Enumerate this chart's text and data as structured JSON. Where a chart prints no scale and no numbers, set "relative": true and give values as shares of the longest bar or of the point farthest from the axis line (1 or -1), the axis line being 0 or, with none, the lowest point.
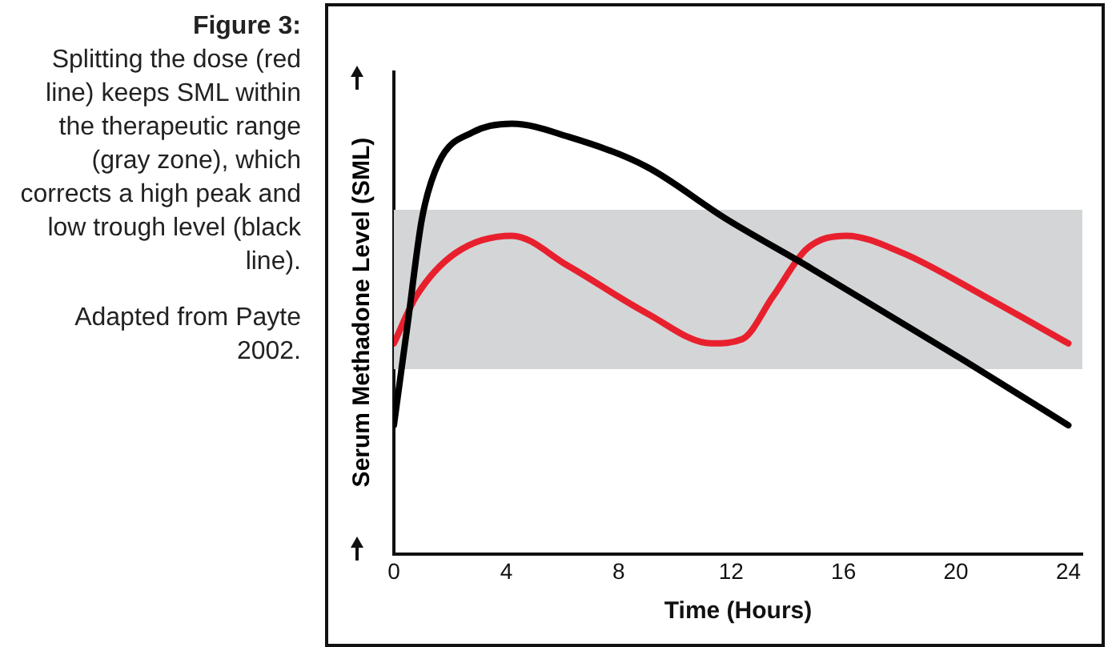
{
  "chart_data": {
    "type": "line",
    "title": "Figure 3:",
    "subtitle": "Splitting the dose (red line) keeps SML within the therapeutic range (gray zone), which corrects a high peak and low trough level (black line).",
    "annotations": [
      "Adapted from Payte 2002."
    ],
    "xlabel": "Time (Hours)",
    "ylabel": "Serum Methadone Level (SML)",
    "relative": true,
    "xlim": [
      0,
      24.5
    ],
    "xticks": [
      0,
      4,
      8,
      12,
      16,
      20,
      24
    ],
    "grid": false,
    "legend": false,
    "marker": "none",
    "line_style": "solid",
    "bands": [
      {
        "axis": "y",
        "from": 0.43,
        "to": 0.8,
        "color": "#d4d5d6"
      }
    ],
    "series": [
      {
        "color": "#000000",
        "x": [
          0,
          0.5,
          1,
          1.6,
          2.8,
          4.2,
          6.2,
          9,
          11.8,
          14.7,
          17.5,
          20.3,
          24
        ],
        "values": [
          0.3,
          0.54,
          0.78,
          0.91,
          0.98,
          1,
          0.97,
          0.9,
          0.78,
          0.67,
          0.56,
          0.45,
          0.3
        ]
      },
      {
        "color": "#e8202e",
        "x": [
          0,
          0.8,
          2.2,
          4.2,
          6.2,
          9,
          11.3,
          12.4,
          13.5,
          14.7,
          16.1,
          18.1,
          21,
          24
        ],
        "values": [
          0.49,
          0.6,
          0.7,
          0.74,
          0.67,
          0.56,
          0.49,
          0.5,
          0.6,
          0.71,
          0.74,
          0.7,
          0.6,
          0.49
        ]
      }
    ]
  }
}
